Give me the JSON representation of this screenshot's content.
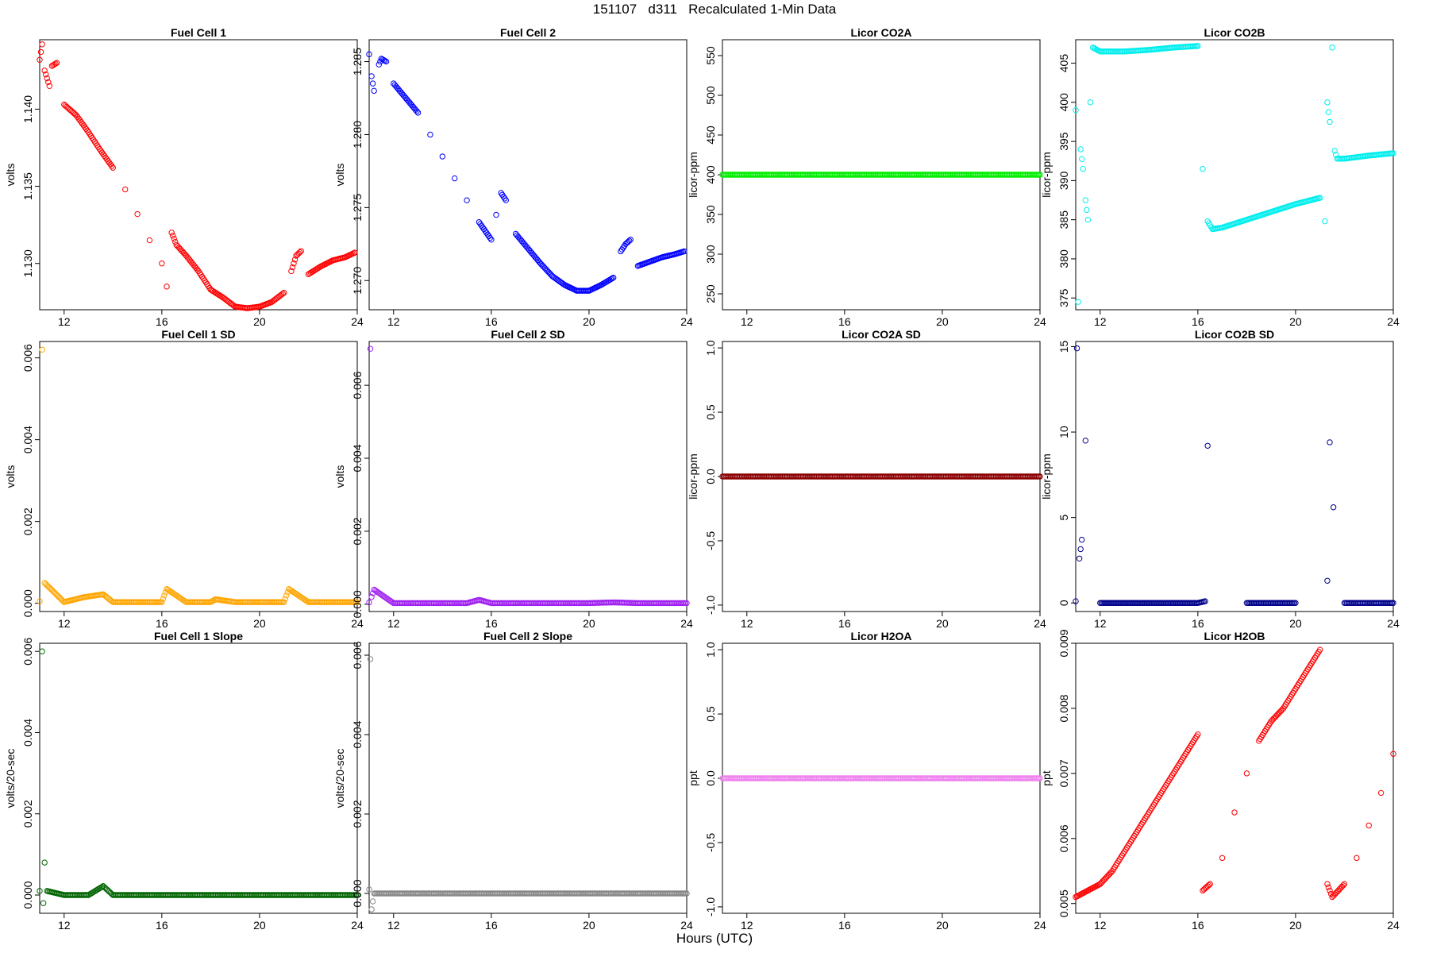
{
  "figure": {
    "title": "151107   d311   Recalculated 1-Min Data",
    "xlabel": "Hours (UTC)"
  },
  "chart_data": [
    {
      "type": "scatter",
      "title": "Fuel Cell 1",
      "ylabel": "volts",
      "color": "#ff0000",
      "marker": "open-circle",
      "xlim": [
        11,
        24
      ],
      "xticks": [
        12,
        16,
        20,
        24
      ],
      "ylim": [
        1.127,
        1.1445
      ],
      "yticks": [
        1.13,
        1.135,
        1.14
      ],
      "ytick_labels": [
        "1.130",
        "1.135",
        "1.140"
      ],
      "x": [
        11.0,
        11.1,
        11.2,
        11.4,
        11.5,
        11.7,
        12.0,
        12.5,
        13.0,
        13.5,
        14.0,
        14.5,
        15.0,
        15.5,
        16.0,
        16.2,
        16.4,
        16.6,
        17.0,
        17.5,
        18.0,
        18.5,
        19.0,
        19.5,
        20.0,
        20.5,
        21.0,
        21.3,
        21.5,
        21.7,
        22.0,
        22.5,
        23.0,
        23.5,
        23.9
      ],
      "y": [
        1.1432,
        1.1442,
        1.1425,
        1.1415,
        1.1428,
        1.143,
        1.1403,
        1.1396,
        1.1385,
        1.1373,
        1.1362,
        1.1348,
        1.1332,
        1.1315,
        1.13,
        1.1285,
        1.132,
        1.1312,
        1.1305,
        1.1295,
        1.1283,
        1.1278,
        1.1272,
        1.1271,
        1.1272,
        1.1275,
        1.1281,
        1.1295,
        1.1305,
        1.1308,
        1.1293,
        1.1298,
        1.1302,
        1.1304,
        1.1307
      ]
    },
    {
      "type": "scatter",
      "title": "Fuel Cell 2",
      "ylabel": "volts",
      "color": "#0000ff",
      "marker": "open-circle",
      "xlim": [
        11,
        24
      ],
      "xticks": [
        12,
        16,
        20,
        24
      ],
      "ylim": [
        1.268,
        1.2865
      ],
      "yticks": [
        1.27,
        1.275,
        1.28,
        1.285
      ],
      "ytick_labels": [
        "1.270",
        "1.275",
        "1.280",
        "1.285"
      ],
      "x": [
        11.0,
        11.1,
        11.2,
        11.4,
        11.5,
        11.7,
        12.0,
        12.5,
        13.0,
        13.5,
        14.0,
        14.5,
        15.0,
        15.5,
        16.0,
        16.2,
        16.4,
        16.6,
        17.0,
        17.5,
        18.0,
        18.5,
        19.0,
        19.5,
        20.0,
        20.5,
        21.0,
        21.3,
        21.5,
        21.7,
        22.0,
        22.5,
        23.0,
        23.5,
        23.9
      ],
      "y": [
        1.2855,
        1.284,
        1.283,
        1.2848,
        1.2852,
        1.285,
        1.2835,
        1.2825,
        1.2815,
        1.28,
        1.2785,
        1.277,
        1.2755,
        1.274,
        1.2728,
        1.2745,
        1.276,
        1.2755,
        1.2732,
        1.2722,
        1.2712,
        1.2703,
        1.2697,
        1.2693,
        1.2693,
        1.2697,
        1.2702,
        1.272,
        1.2725,
        1.2728,
        1.271,
        1.2713,
        1.2716,
        1.2718,
        1.272
      ]
    },
    {
      "type": "scatter",
      "title": "Licor CO2A",
      "ylabel": "licor-ppm",
      "color": "#00ee00",
      "marker": "open-circle",
      "xlim": [
        11,
        24
      ],
      "xticks": [
        12,
        16,
        20,
        24
      ],
      "ylim": [
        230,
        570
      ],
      "yticks": [
        250,
        300,
        350,
        400,
        450,
        500,
        550
      ],
      "ytick_labels": [
        "250",
        "300",
        "350",
        "400",
        "450",
        "500",
        "550"
      ],
      "x": [
        11,
        12,
        13,
        14,
        15,
        16,
        17,
        18,
        19,
        20,
        21,
        22,
        23,
        24
      ],
      "y": [
        400,
        400,
        400,
        400,
        400,
        400,
        400,
        400,
        400,
        400,
        400,
        400,
        400,
        400
      ]
    },
    {
      "type": "scatter",
      "title": "Licor CO2B",
      "ylabel": "licor-ppm",
      "color": "#00eeee",
      "marker": "open-circle",
      "xlim": [
        11,
        24
      ],
      "xticks": [
        12,
        16,
        20,
        24
      ],
      "ylim": [
        373.5,
        408
      ],
      "yticks": [
        375,
        380,
        385,
        390,
        395,
        400,
        405
      ],
      "ytick_labels": [
        "375",
        "380",
        "385",
        "390",
        "395",
        "400",
        "405"
      ],
      "x": [
        11.0,
        11.1,
        11.2,
        11.3,
        11.4,
        11.5,
        11.6,
        11.7,
        12.0,
        13.0,
        14.0,
        15.0,
        16.0,
        16.2,
        16.4,
        16.6,
        17.0,
        18.0,
        19.0,
        20.0,
        21.0,
        21.2,
        21.3,
        21.4,
        21.5,
        21.6,
        21.7,
        22.0,
        23.0,
        24.0
      ],
      "y": [
        399,
        374.5,
        394,
        391.5,
        387.5,
        385,
        400,
        407,
        406.5,
        406.5,
        406.7,
        407,
        407.2,
        391.5,
        384.8,
        383.8,
        384,
        385,
        386,
        387,
        387.8,
        384.8,
        400,
        397.5,
        407,
        393.8,
        392.8,
        392.8,
        393.2,
        393.5
      ]
    },
    {
      "type": "scatter",
      "title": "Fuel Cell 1 SD",
      "ylabel": "volts",
      "color": "#ffa500",
      "marker": "open-circle",
      "xlim": [
        11,
        24
      ],
      "xticks": [
        12,
        16,
        20,
        24
      ],
      "ylim": [
        -0.0002,
        0.0064
      ],
      "yticks": [
        0,
        0.002,
        0.004,
        0.006
      ],
      "ytick_labels": [
        "0.000",
        "0.002",
        "0.004",
        "0.006"
      ],
      "x": [
        11.0,
        11.1,
        11.2,
        12.0,
        12.8,
        13.6,
        14.0,
        15.0,
        16.0,
        16.2,
        17.0,
        18.0,
        18.2,
        19.0,
        20.0,
        21.0,
        21.2,
        22.0,
        23.0,
        24.0
      ],
      "y": [
        5e-05,
        0.0062,
        0.0005,
        3e-05,
        0.00015,
        0.00022,
        3e-05,
        3e-05,
        3e-05,
        0.00035,
        3e-05,
        3e-05,
        0.0001,
        3e-05,
        3e-05,
        3e-05,
        0.00035,
        3e-05,
        3e-05,
        3e-05
      ]
    },
    {
      "type": "scatter",
      "title": "Fuel Cell 2 SD",
      "ylabel": "volts",
      "color": "#a020f0",
      "marker": "open-circle",
      "xlim": [
        11,
        24
      ],
      "xticks": [
        12,
        16,
        20,
        24
      ],
      "ylim": [
        -0.0002,
        0.0072
      ],
      "yticks": [
        0,
        0.002,
        0.004,
        0.006
      ],
      "ytick_labels": [
        "0.000",
        "0.002",
        "0.004",
        "0.006"
      ],
      "x": [
        11.0,
        11.05,
        11.1,
        11.2,
        12.0,
        13.0,
        14.0,
        15.0,
        15.5,
        16.0,
        17.0,
        18.0,
        19.0,
        20.0,
        21.0,
        22.0,
        23.0,
        24.0
      ],
      "y": [
        5e-05,
        0.007,
        0.0002,
        0.0004,
        3e-05,
        3e-05,
        3e-05,
        3e-05,
        0.00012,
        3e-05,
        3e-05,
        3e-05,
        3e-05,
        3e-05,
        5e-05,
        3e-05,
        3e-05,
        3e-05
      ]
    },
    {
      "type": "scatter",
      "title": "Licor CO2A SD",
      "ylabel": "licor-ppm",
      "color": "#8b0000",
      "marker": "open-circle",
      "xlim": [
        11,
        24
      ],
      "xticks": [
        12,
        16,
        20,
        24
      ],
      "ylim": [
        -1.05,
        1.05
      ],
      "yticks": [
        -1.0,
        -0.5,
        0,
        0.5,
        1.0
      ],
      "ytick_labels": [
        "-1.0",
        "-0.5",
        "0.0",
        "0.5",
        "1.0"
      ],
      "x": [
        11,
        12,
        13,
        14,
        15,
        16,
        17,
        18,
        19,
        20,
        21,
        22,
        23,
        24
      ],
      "y": [
        0,
        0,
        0,
        0,
        0,
        0,
        0,
        0,
        0,
        0,
        0,
        0,
        0,
        0
      ]
    },
    {
      "type": "scatter",
      "title": "Licor CO2B SD",
      "ylabel": "licor-ppm",
      "color": "#00008b",
      "marker": "open-circle",
      "xlim": [
        11,
        24
      ],
      "xticks": [
        12,
        16,
        20,
        24
      ],
      "ylim": [
        -0.5,
        15.3
      ],
      "yticks": [
        0,
        5,
        10,
        15
      ],
      "ytick_labels": [
        "0",
        "5",
        "10",
        "15"
      ],
      "x": [
        11.0,
        11.05,
        11.15,
        11.25,
        11.4,
        12.0,
        14.0,
        16.0,
        16.3,
        16.4,
        18.0,
        20.0,
        21.3,
        21.4,
        21.55,
        22.0,
        23.0,
        24.0
      ],
      "y": [
        0.1,
        14.9,
        2.6,
        3.7,
        9.5,
        0,
        0,
        0,
        0.1,
        9.2,
        0,
        0,
        1.3,
        9.4,
        5.6,
        0,
        0,
        0
      ]
    },
    {
      "type": "scatter",
      "title": "Fuel Cell 1 Slope",
      "ylabel": "volts/20-sec",
      "color": "#006400",
      "marker": "open-circle",
      "xlim": [
        11,
        24
      ],
      "xticks": [
        12,
        16,
        20,
        24
      ],
      "ylim": [
        -0.00045,
        0.0062
      ],
      "yticks": [
        0,
        0.002,
        0.004,
        0.006
      ],
      "ytick_labels": [
        "0.000",
        "0.002",
        "0.004",
        "0.006"
      ],
      "x": [
        11.0,
        11.1,
        11.15,
        11.2,
        11.3,
        12.0,
        13.0,
        13.6,
        14.0,
        15.0,
        16.0,
        17.0,
        18.0,
        19.0,
        20.0,
        21.0,
        22.0,
        23.0,
        24.0
      ],
      "y": [
        0.0001,
        0.006,
        -0.0002,
        0.0008,
        0.0001,
        0.0,
        0.0,
        0.00022,
        0.0,
        0.0,
        0.0,
        0.0,
        0.0,
        0.0,
        0.0,
        0.0,
        0.0,
        0.0,
        0.0
      ]
    },
    {
      "type": "scatter",
      "title": "Fuel Cell 2 Slope",
      "ylabel": "volts/20-sec",
      "color": "#888888",
      "marker": "open-circle",
      "xlim": [
        11,
        24
      ],
      "xticks": [
        12,
        16,
        20,
        24
      ],
      "ylim": [
        -0.0005,
        0.0063
      ],
      "yticks": [
        0,
        0.002,
        0.004,
        0.006
      ],
      "ytick_labels": [
        "0.000",
        "0.002",
        "0.004",
        "0.006"
      ],
      "x": [
        11.0,
        11.05,
        11.1,
        11.2,
        12.0,
        13.0,
        14.0,
        15.0,
        16.0,
        17.0,
        18.0,
        19.0,
        20.0,
        21.0,
        22.0,
        23.0,
        24.0
      ],
      "y": [
        0.0001,
        0.0059,
        -0.0004,
        0.0,
        0.0,
        0.0,
        0.0,
        0.0,
        0.0,
        0.0,
        0.0,
        0.0,
        0.0,
        0.0,
        0.0,
        0.0,
        0.0
      ]
    },
    {
      "type": "scatter",
      "title": "Licor H2OA",
      "ylabel": "ppt",
      "color": "#ee82ee",
      "marker": "open-circle",
      "xlim": [
        11,
        24
      ],
      "xticks": [
        12,
        16,
        20,
        24
      ],
      "ylim": [
        -1.05,
        1.05
      ],
      "yticks": [
        -1.0,
        -0.5,
        0,
        0.5,
        1.0
      ],
      "ytick_labels": [
        "-1.0",
        "-0.5",
        "0.0",
        "0.5",
        "1.0"
      ],
      "x": [
        11,
        12,
        13,
        14,
        15,
        16,
        17,
        18,
        19,
        20,
        21,
        22,
        23,
        24
      ],
      "y": [
        0,
        0,
        0,
        0,
        0,
        0,
        0,
        0,
        0,
        0,
        0,
        0,
        0,
        0
      ]
    },
    {
      "type": "scatter",
      "title": "Licor H2OB",
      "ylabel": "ppt",
      "color": "#ff0000",
      "marker": "open-circle",
      "xlim": [
        11,
        24
      ],
      "xticks": [
        12,
        16,
        20,
        24
      ],
      "ylim": [
        0.00485,
        0.009
      ],
      "yticks": [
        0.005,
        0.006,
        0.007,
        0.008,
        0.009
      ],
      "ytick_labels": [
        "0.005",
        "0.006",
        "0.007",
        "0.008",
        "0.009"
      ],
      "x": [
        11.0,
        11.5,
        12.0,
        12.5,
        13.0,
        13.5,
        14.0,
        14.5,
        15.0,
        15.5,
        16.0,
        16.2,
        16.5,
        17.0,
        17.5,
        18.0,
        18.5,
        19.0,
        19.5,
        20.0,
        20.5,
        21.0,
        21.3,
        21.5,
        22.0,
        22.5,
        23.0,
        23.5,
        24.0
      ],
      "y": [
        0.0051,
        0.0052,
        0.0053,
        0.0055,
        0.0058,
        0.0061,
        0.0064,
        0.0067,
        0.007,
        0.0073,
        0.0076,
        0.0052,
        0.0053,
        0.0057,
        0.0064,
        0.007,
        0.0075,
        0.0078,
        0.008,
        0.0083,
        0.0086,
        0.0089,
        0.0053,
        0.0051,
        0.0053,
        0.0057,
        0.0062,
        0.0067,
        0.0073
      ]
    }
  ]
}
